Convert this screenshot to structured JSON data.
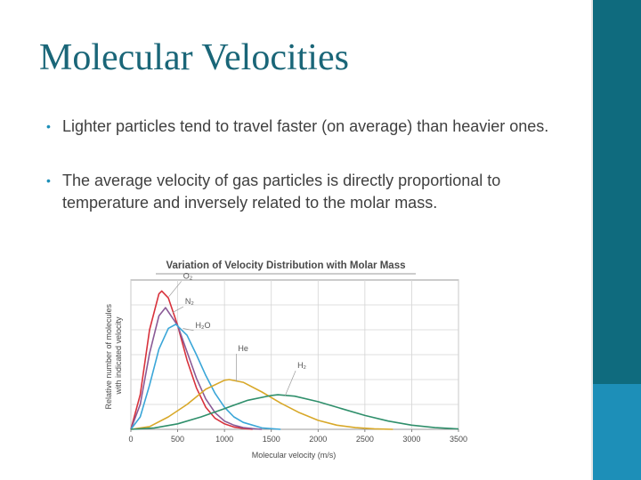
{
  "slide": {
    "title": "Molecular Velocities",
    "bullets": [
      "Lighter particles tend to travel faster (on average) than heavier ones.",
      "The average velocity of gas particles is directly proportional to temperature and inversely related to the molar mass."
    ]
  },
  "theme": {
    "bar_color": "#0f6b7e",
    "bar_accent_color": "#1d8fb8",
    "title_color": "#1a6678"
  },
  "chart_data": {
    "type": "line",
    "title": "Variation of Velocity Distribution with Molar Mass",
    "xlabel": "Molecular velocity (m/s)",
    "ylabel": "Relative number of molecules with indicated velocity",
    "xlim": [
      0,
      3500
    ],
    "x_ticks": [
      "0",
      "500",
      "1000",
      "1500",
      "2000",
      "2500",
      "3000",
      "3500"
    ],
    "grid": true,
    "legend": "inline labels",
    "series": [
      {
        "name": "O₂",
        "color": "#d8323c",
        "peak_velocity": 330,
        "peak_height": 1.0,
        "x": [
          0,
          100,
          200,
          300,
          330,
          400,
          500,
          600,
          700,
          800,
          900,
          1000,
          1100,
          1200,
          1300
        ],
        "y": [
          0,
          0.25,
          0.72,
          0.98,
          1.0,
          0.95,
          0.75,
          0.5,
          0.3,
          0.16,
          0.08,
          0.04,
          0.017,
          0.007,
          0
        ]
      },
      {
        "name": "N₂",
        "color": "#8a5a96",
        "peak_velocity": 370,
        "peak_height": 0.88,
        "x": [
          0,
          100,
          200,
          300,
          370,
          500,
          600,
          700,
          800,
          900,
          1000,
          1100,
          1200,
          1300,
          1400
        ],
        "y": [
          0,
          0.18,
          0.55,
          0.82,
          0.88,
          0.75,
          0.56,
          0.37,
          0.22,
          0.12,
          0.06,
          0.03,
          0.013,
          0.005,
          0
        ]
      },
      {
        "name": "H₂O",
        "color": "#3aa6d8",
        "peak_velocity": 480,
        "peak_height": 0.76,
        "x": [
          0,
          100,
          200,
          300,
          400,
          480,
          600,
          700,
          800,
          900,
          1000,
          1100,
          1200,
          1400,
          1600
        ],
        "y": [
          0,
          0.09,
          0.32,
          0.58,
          0.73,
          0.76,
          0.68,
          0.54,
          0.39,
          0.26,
          0.16,
          0.09,
          0.05,
          0.01,
          0
        ]
      },
      {
        "name": "He",
        "color": "#d8a829",
        "peak_velocity": 1050,
        "peak_height": 0.36,
        "x": [
          0,
          200,
          400,
          600,
          800,
          1000,
          1050,
          1200,
          1400,
          1600,
          1800,
          2000,
          2200,
          2400,
          2600,
          2800
        ],
        "y": [
          0,
          0.02,
          0.09,
          0.18,
          0.29,
          0.355,
          0.36,
          0.34,
          0.27,
          0.19,
          0.12,
          0.065,
          0.03,
          0.012,
          0.004,
          0
        ]
      },
      {
        "name": "H₂",
        "color": "#2f8f6b",
        "peak_velocity": 1570,
        "peak_height": 0.25,
        "x": [
          0,
          250,
          500,
          750,
          1000,
          1250,
          1500,
          1570,
          1750,
          2000,
          2250,
          2500,
          2750,
          3000,
          3250,
          3500
        ],
        "y": [
          0,
          0.01,
          0.04,
          0.09,
          0.15,
          0.21,
          0.245,
          0.25,
          0.24,
          0.2,
          0.15,
          0.1,
          0.06,
          0.03,
          0.012,
          0.003
        ]
      }
    ]
  }
}
